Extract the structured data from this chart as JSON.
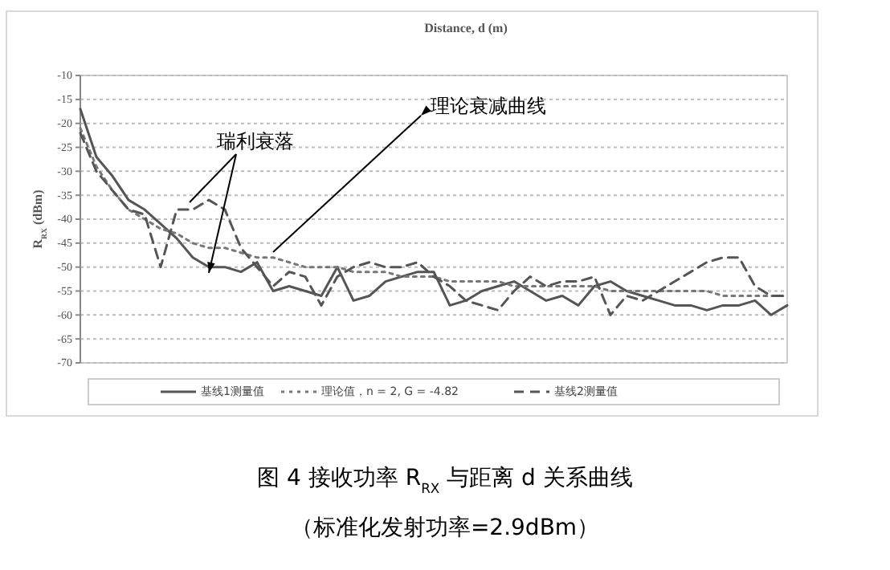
{
  "chart_data": {
    "type": "line",
    "title": "图 4  接收功率 R$_{RX}$  与距离 d 关系曲线",
    "subtitle": "（标准化发射功率=2.9dBm）",
    "xlabel": "Distance, d (m)",
    "ylabel": "R$_{RX}$ (dBm)",
    "categories": [
      null,
      null,
      null,
      null,
      null,
      null,
      null,
      null,
      null,
      null,
      null,
      null,
      null,
      null,
      null,
      null,
      null,
      null,
      null,
      null,
      null,
      null,
      null,
      null,
      null,
      null,
      null,
      null,
      null,
      null,
      null,
      null,
      null,
      null,
      null,
      null,
      null,
      null,
      null,
      null,
      null,
      null,
      null,
      null,
      null
    ],
    "series": [
      {
        "name": "基线1测量值",
        "color": "#555555",
        "line_style": "solid",
        "values": [
          -17,
          -27,
          -31,
          -36,
          -38,
          -41,
          -44,
          -48,
          -50,
          -50,
          -51,
          -49,
          -55,
          -54,
          -55,
          -56,
          -50,
          -57,
          -56,
          -53,
          -52,
          -51,
          -51,
          -58,
          -57,
          -55,
          -54,
          -53,
          -55,
          -57,
          -56,
          -58,
          -54,
          -53,
          -55,
          -56,
          -57,
          -58,
          -58,
          -59,
          -58,
          -58,
          -57,
          -60,
          -58
        ]
      },
      {
        "name": "理论值，n = 2, G = -4.82",
        "color": "#777777",
        "line_style": "dotted",
        "values": [
          -21,
          -29,
          -34,
          -38,
          -40,
          -42,
          -43,
          -45,
          -46,
          -46,
          -47,
          -48,
          -48,
          -49,
          -50,
          -50,
          -50,
          -51,
          -51,
          -51,
          -52,
          -52,
          -52,
          -53,
          -53,
          -53,
          -53,
          -54,
          -54,
          -54,
          -54,
          -54,
          -54,
          -55,
          -55,
          -55,
          -55,
          -55,
          -55,
          -55,
          -56,
          -56,
          -56,
          -56,
          -56
        ]
      },
      {
        "name": "基线2测量值",
        "color": "#555555",
        "line_style": "dashed",
        "values": [
          -22,
          -30,
          -34,
          -38,
          -39,
          -50,
          -38,
          -38,
          -36,
          -38,
          -46,
          -50,
          -54,
          -51,
          -52,
          -58,
          -52,
          -50,
          -49,
          -50,
          -50,
          -49,
          -52,
          -54,
          -57,
          -58,
          -59,
          -55,
          -52,
          -54,
          -53,
          -53,
          -52,
          -60,
          -56,
          -57,
          -55,
          -53,
          -51,
          -49,
          -48,
          -48,
          -54,
          -56,
          -56
        ]
      }
    ],
    "ylim": [
      -70,
      -10
    ],
    "yticks": [
      -70,
      -65,
      -60,
      -55,
      -50,
      -45,
      -40,
      -35,
      -30,
      -25,
      -20,
      -15,
      -10
    ],
    "grid": "y",
    "legend": "bottom",
    "tick_labels": "y",
    "annotations": [
      "瑞利衰落",
      "理论衰减曲线"
    ]
  }
}
